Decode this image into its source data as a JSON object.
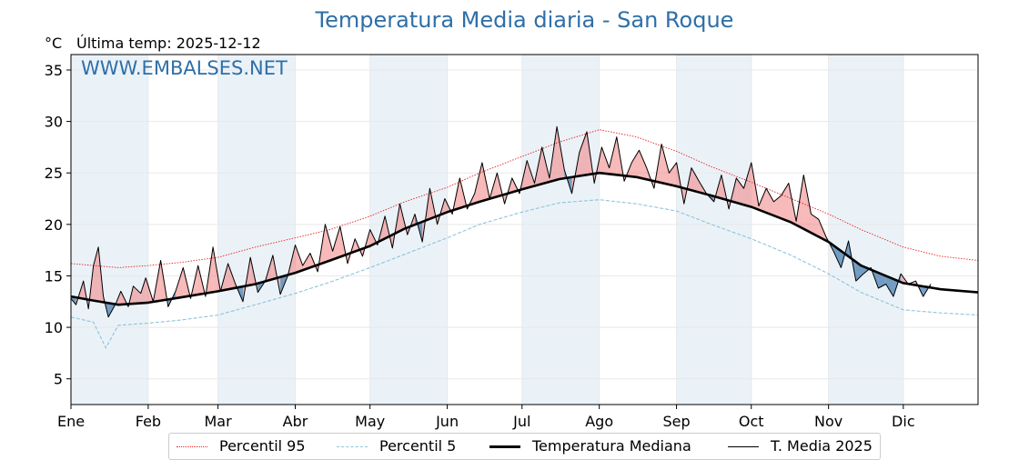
{
  "title": "Temperatura Media diaria - San Roque",
  "unit": "°C",
  "last_temp": "Última temp: 2025-12-12",
  "watermark": "WWW.EMBALSES.NET",
  "colors": {
    "title": "#2e6fa8",
    "p95": "#e8221f",
    "p5": "#8fc3da",
    "median": "#000000",
    "year": "#000000",
    "fill_above": "#f08080",
    "fill_below": "#4a7fb0",
    "band": "#eaf2f8"
  },
  "legend": [
    {
      "key": "p95",
      "label": "Percentil 95",
      "style": "dotted-red"
    },
    {
      "key": "p5",
      "label": "Percentil 5",
      "style": "dashed-lightblue"
    },
    {
      "key": "median",
      "label": "Temperatura Mediana",
      "style": "thick-black"
    },
    {
      "key": "year",
      "label": "T. Media 2025",
      "style": "thin-black"
    }
  ],
  "chart_data": {
    "type": "line",
    "title": "Temperatura Media diaria - San Roque",
    "ylabel": "°C",
    "ylim": [
      2.5,
      36.5
    ],
    "yticks": [
      5,
      10,
      15,
      20,
      25,
      30,
      35
    ],
    "xlim": [
      1,
      365
    ],
    "months": [
      "Ene",
      "Feb",
      "Mar",
      "Abr",
      "May",
      "Jun",
      "Jul",
      "Ago",
      "Sep",
      "Oct",
      "Nov",
      "Dic"
    ],
    "month_start_day": [
      1,
      32,
      60,
      91,
      121,
      152,
      182,
      213,
      244,
      274,
      305,
      335
    ],
    "grid": true,
    "legend_position": "bottom-center",
    "series": [
      {
        "name": "Percentil 95",
        "key": "p95",
        "x": [
          1,
          10,
          20,
          32,
          45,
          60,
          75,
          91,
          105,
          121,
          135,
          152,
          165,
          182,
          197,
          213,
          228,
          244,
          258,
          274,
          290,
          305,
          318,
          335,
          350,
          365
        ],
        "y": [
          16.2,
          16.0,
          15.8,
          16.0,
          16.3,
          16.8,
          17.8,
          18.7,
          19.5,
          20.8,
          22.2,
          23.6,
          25.0,
          26.6,
          28.0,
          29.2,
          28.5,
          27.1,
          25.6,
          24.1,
          22.5,
          21.0,
          19.5,
          17.8,
          16.9,
          16.5
        ]
      },
      {
        "name": "Percentil 5",
        "key": "p5",
        "x": [
          1,
          10,
          15,
          20,
          32,
          45,
          60,
          75,
          91,
          105,
          121,
          135,
          152,
          165,
          182,
          197,
          213,
          228,
          244,
          258,
          274,
          290,
          305,
          318,
          335,
          350,
          365
        ],
        "y": [
          11.0,
          10.5,
          8.0,
          10.2,
          10.4,
          10.7,
          11.2,
          12.2,
          13.3,
          14.4,
          15.8,
          17.1,
          18.7,
          20.0,
          21.2,
          22.1,
          22.4,
          22.0,
          21.3,
          20.0,
          18.6,
          17.0,
          15.2,
          13.4,
          11.7,
          11.4,
          11.2
        ]
      },
      {
        "name": "Temperatura Mediana",
        "key": "median",
        "x": [
          1,
          10,
          20,
          32,
          45,
          60,
          75,
          91,
          105,
          121,
          135,
          152,
          165,
          182,
          197,
          213,
          228,
          244,
          258,
          274,
          290,
          305,
          318,
          335,
          350,
          365
        ],
        "y": [
          13.0,
          12.6,
          12.2,
          12.4,
          12.9,
          13.5,
          14.2,
          15.3,
          16.5,
          17.9,
          19.6,
          21.2,
          22.2,
          23.4,
          24.4,
          25.0,
          24.6,
          23.7,
          22.8,
          21.7,
          20.2,
          18.3,
          16.0,
          14.3,
          13.7,
          13.4
        ]
      },
      {
        "name": "T. Media 2025",
        "key": "year",
        "x": [
          1,
          3,
          6,
          8,
          10,
          12,
          14,
          16,
          19,
          21,
          24,
          26,
          29,
          31,
          34,
          37,
          40,
          43,
          46,
          49,
          52,
          55,
          58,
          61,
          64,
          67,
          70,
          73,
          76,
          79,
          82,
          85,
          88,
          91,
          94,
          97,
          100,
          103,
          106,
          109,
          112,
          115,
          118,
          121,
          124,
          127,
          130,
          133,
          136,
          139,
          142,
          145,
          148,
          151,
          154,
          157,
          160,
          163,
          166,
          169,
          172,
          175,
          178,
          181,
          184,
          187,
          190,
          193,
          196,
          199,
          202,
          205,
          208,
          211,
          214,
          217,
          220,
          223,
          226,
          229,
          232,
          235,
          238,
          241,
          244,
          247,
          250,
          253,
          256,
          259,
          262,
          265,
          268,
          271,
          274,
          277,
          280,
          283,
          286,
          289,
          292,
          295,
          298,
          301,
          304,
          307,
          310,
          313,
          316,
          319,
          322,
          325,
          328,
          331,
          334,
          337,
          340,
          343,
          346
        ],
        "y": [
          12.8,
          12.2,
          14.5,
          11.8,
          16.0,
          17.8,
          13.0,
          11.0,
          12.3,
          13.5,
          12.0,
          14.0,
          13.3,
          14.8,
          12.5,
          16.5,
          12.0,
          13.5,
          15.8,
          12.8,
          16.0,
          13.0,
          17.8,
          13.5,
          16.2,
          14.2,
          12.5,
          16.8,
          13.4,
          14.5,
          17.0,
          13.2,
          15.0,
          18.0,
          16.0,
          17.2,
          15.4,
          20.0,
          17.4,
          19.8,
          16.2,
          18.6,
          16.9,
          19.5,
          18.0,
          20.8,
          17.7,
          22.0,
          19.0,
          21.0,
          18.3,
          23.5,
          20.0,
          22.5,
          21.0,
          24.5,
          21.5,
          23.0,
          26.0,
          22.5,
          25.0,
          22.0,
          24.5,
          23.0,
          26.2,
          24.0,
          27.5,
          24.5,
          29.5,
          25.3,
          23.0,
          27.0,
          29.0,
          24.0,
          27.5,
          25.5,
          28.5,
          24.2,
          26.0,
          27.2,
          25.5,
          23.5,
          27.8,
          25.0,
          26.0,
          22.0,
          25.5,
          24.2,
          23.0,
          22.2,
          24.8,
          21.5,
          24.5,
          23.5,
          26.0,
          21.8,
          23.5,
          22.2,
          22.8,
          24.0,
          20.3,
          24.8,
          21.0,
          20.5,
          18.8,
          17.4,
          15.8,
          18.4,
          14.5,
          15.2,
          15.8,
          13.8,
          14.2,
          13.0,
          15.2,
          14.2,
          14.5,
          13.0,
          14.2
        ]
      }
    ]
  }
}
